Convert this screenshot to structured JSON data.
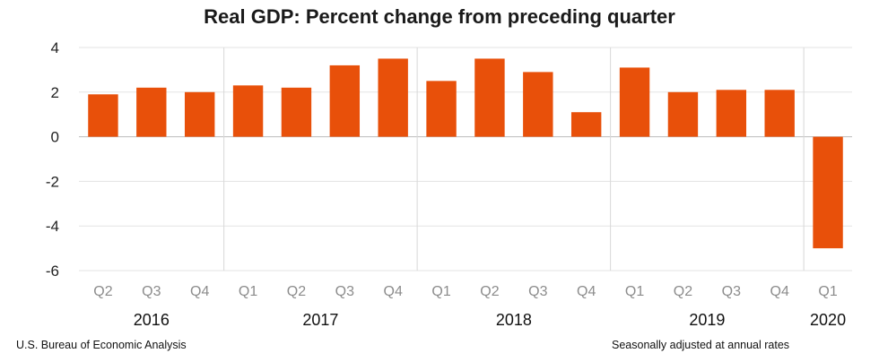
{
  "chart_data": {
    "type": "bar",
    "title": "Real GDP:  Percent change from preceding quarter",
    "xlabel": "",
    "ylabel": "",
    "ylim": [
      -6,
      4
    ],
    "yticks": [
      "4",
      "2",
      "0",
      "-2",
      "-4",
      "-6"
    ],
    "grid": true,
    "categories": [
      "Q2",
      "Q3",
      "Q4",
      "Q1",
      "Q2",
      "Q3",
      "Q4",
      "Q1",
      "Q2",
      "Q3",
      "Q4",
      "Q1",
      "Q2",
      "Q3",
      "Q4",
      "Q1"
    ],
    "values": [
      1.9,
      2.2,
      2.0,
      2.3,
      2.2,
      3.2,
      3.5,
      2.5,
      3.5,
      2.9,
      1.1,
      3.1,
      2.0,
      2.1,
      2.1,
      -5.0
    ],
    "years": [
      {
        "label": "2016",
        "start": 0,
        "count": 3
      },
      {
        "label": "2017",
        "start": 3,
        "count": 4
      },
      {
        "label": "2018",
        "start": 7,
        "count": 4
      },
      {
        "label": "2019",
        "start": 11,
        "count": 4
      },
      {
        "label": "2020",
        "start": 15,
        "count": 1
      }
    ],
    "bar_color": "#e8500a"
  },
  "footer": {
    "source": "U.S. Bureau of Economic Analysis",
    "note": "Seasonally adjusted at annual rates"
  }
}
